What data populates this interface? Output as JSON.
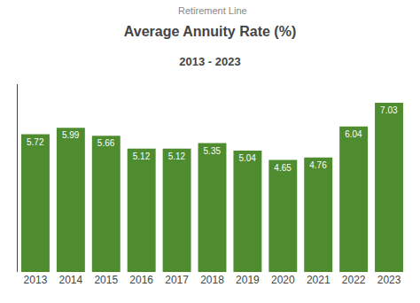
{
  "chart_data": {
    "type": "bar",
    "title": "Average Annuity Rate (%)",
    "subtitle": "2013 - 2023",
    "categories": [
      "2013",
      "2014",
      "2015",
      "2016",
      "2017",
      "2018",
      "2019",
      "2020",
      "2021",
      "2022",
      "2023"
    ],
    "values": [
      5.72,
      5.99,
      5.66,
      5.12,
      5.12,
      5.35,
      5.04,
      4.65,
      4.76,
      6.04,
      7.03
    ],
    "color": "#4e8c2f",
    "ylim": [
      0,
      7.8
    ],
    "yticks": [],
    "tick_labels": "x",
    "grid": false,
    "data_labels": true,
    "annotations": [
      {
        "text": "Retirement Line"
      }
    ]
  }
}
